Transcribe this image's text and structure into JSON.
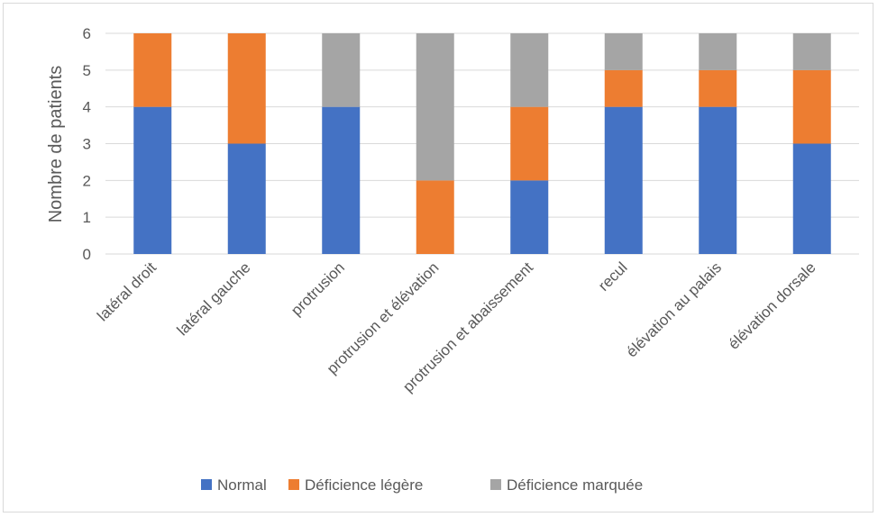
{
  "chart_data": {
    "type": "bar",
    "stacked": true,
    "title": "",
    "xlabel": "",
    "ylabel": "Nombre de patients",
    "ylim": [
      0,
      6
    ],
    "yticks": [
      0,
      1,
      2,
      3,
      4,
      5,
      6
    ],
    "grid": true,
    "legend_position": "bottom",
    "categories": [
      "latéral droit",
      "latéral gauche",
      "protrusion",
      "protrusion et élévation",
      "protrusion et abaissement",
      "recul",
      "élévation au palais",
      "élévation dorsale"
    ],
    "series": [
      {
        "name": "Normal",
        "color": "#4472c4",
        "values": [
          4,
          3,
          4,
          0,
          2,
          4,
          4,
          3
        ]
      },
      {
        "name": "Déficience légère",
        "color": "#ed7d31",
        "values": [
          2,
          3,
          0,
          2,
          2,
          1,
          1,
          2
        ]
      },
      {
        "name": "Déficience marquée",
        "color": "#a5a5a5",
        "values": [
          0,
          0,
          2,
          4,
          2,
          1,
          1,
          1
        ]
      }
    ]
  }
}
